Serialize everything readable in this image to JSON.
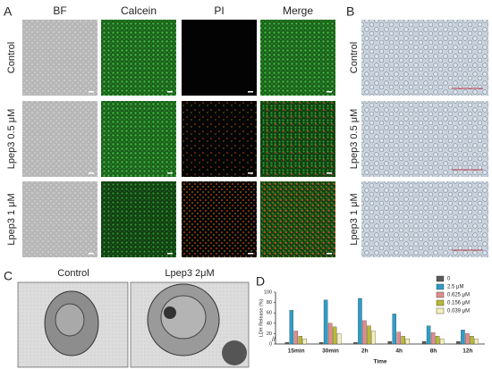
{
  "panel_a": {
    "label": "A",
    "columns": [
      "BF",
      "Calcein",
      "PI",
      "Merge"
    ],
    "rows": [
      "Control",
      "Lpep3 0.5 μM",
      "Lpep3 1 μM"
    ]
  },
  "panel_b": {
    "label": "B",
    "rows": [
      "Control",
      "Lpep3 0.5 μM",
      "Lpep3 1 μM"
    ]
  },
  "panel_c": {
    "label": "C",
    "columns": [
      "Control",
      "Lpep3  2μM"
    ]
  },
  "panel_d": {
    "label": "D"
  },
  "chart_data": {
    "type": "bar",
    "y_label": "LDH Release (%)",
    "x_label": "Time",
    "categories": [
      "15min",
      "30min",
      "2h",
      "4h",
      "8h",
      "12h"
    ],
    "series": [
      {
        "name": "0",
        "color": "#5a5a5a",
        "values": [
          3,
          3,
          3,
          5,
          5,
          5
        ]
      },
      {
        "name": "2.5 μM",
        "color": "#2e9ec7",
        "values": [
          65,
          85,
          88,
          58,
          35,
          27
        ]
      },
      {
        "name": "0.625 μM",
        "color": "#e08c8c",
        "values": [
          25,
          40,
          45,
          23,
          22,
          20
        ]
      },
      {
        "name": "0.156 μM",
        "color": "#b8b833",
        "values": [
          15,
          33,
          35,
          15,
          15,
          15
        ]
      },
      {
        "name": "0.039 μM",
        "color": "#f2f0b8",
        "values": [
          10,
          20,
          25,
          10,
          10,
          10
        ]
      }
    ],
    "ylim": [
      0,
      100
    ],
    "yticks": [
      0,
      20,
      40,
      60,
      80,
      100
    ],
    "legend": "top-right"
  }
}
